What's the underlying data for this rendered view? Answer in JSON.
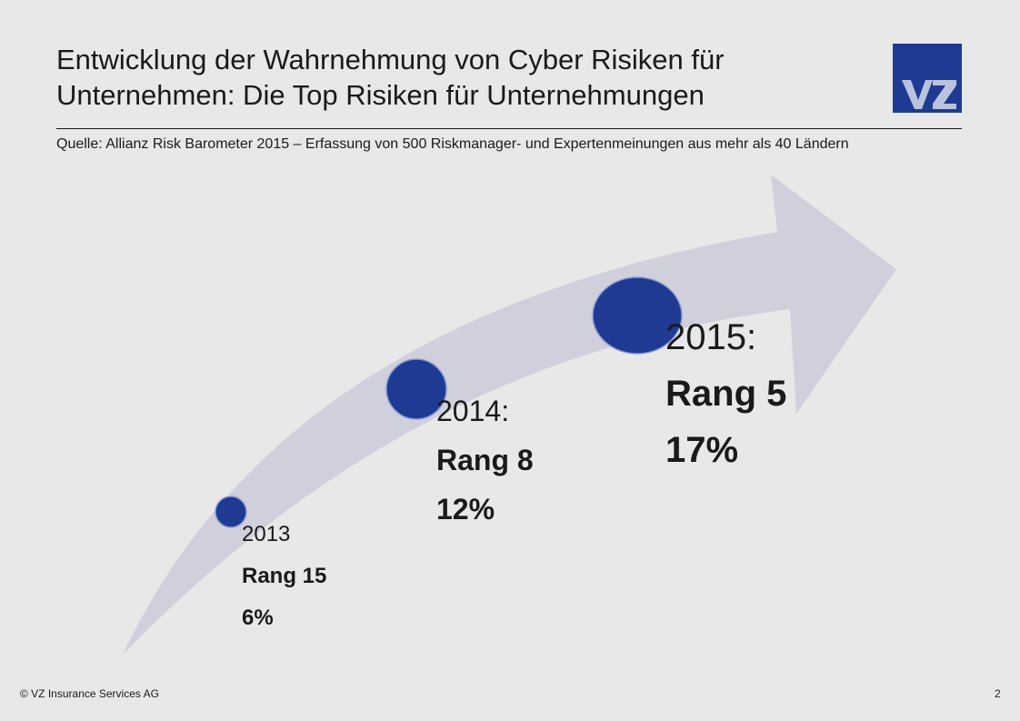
{
  "header": {
    "title_line1": "Entwicklung der Wahrnehmung von Cyber Risiken für",
    "title_line2": "Unternehmen: Die Top Risiken für Unternehmungen",
    "logo_text": "VZ"
  },
  "source": "Quelle: Allianz Risk Barometer 2015 – Erfassung von 500 Riskmanager- und Expertenmeinungen aus mehr als 40 Ländern",
  "milestones": [
    {
      "year": "2013",
      "rank": "Rang 15",
      "percent": "6%"
    },
    {
      "year": "2014:",
      "rank": "Rang 8",
      "percent": "12%"
    },
    {
      "year": "2015:",
      "rank": "Rang 5",
      "percent": "17%"
    }
  ],
  "colors": {
    "background": "#e8e8e8",
    "arrow": "#cfd0dc",
    "dot": "#1f3a93",
    "logo": "#1f3a93"
  },
  "footer": {
    "copyright": "© VZ Insurance Services AG",
    "page_number": "2"
  }
}
